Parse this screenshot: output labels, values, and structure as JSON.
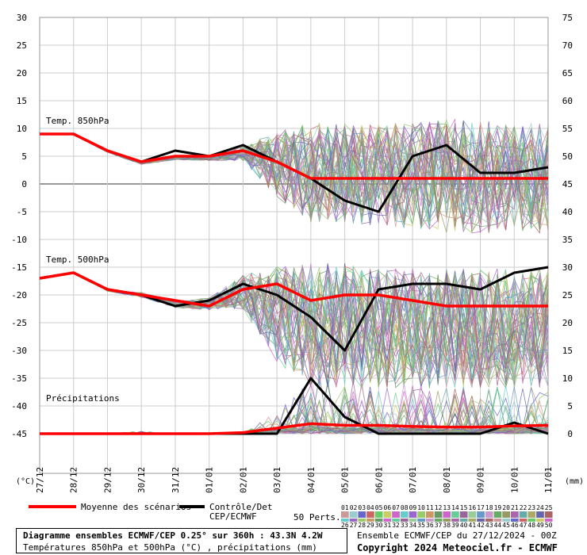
{
  "chart_data": {
    "type": "line",
    "left_axis": {
      "unit": "(°C)",
      "ticks": [
        30,
        25,
        20,
        15,
        10,
        5,
        0,
        -5,
        -10,
        -15,
        -20,
        -25,
        -30,
        -35,
        -40,
        -45
      ]
    },
    "right_axis": {
      "unit": "(mm)",
      "ticks": [
        75,
        70,
        65,
        60,
        55,
        50,
        45,
        40,
        35,
        30,
        25,
        20,
        15,
        10,
        5,
        0
      ]
    },
    "x_tick_labels": [
      "27/12",
      "28/12",
      "29/12",
      "30/12",
      "31/12",
      "01/01",
      "02/01",
      "03/01",
      "04/01",
      "05/01",
      "06/01",
      "07/01",
      "08/01",
      "09/01",
      "10/01",
      "11/01"
    ],
    "panels": {
      "t850": {
        "label": "Temp. 850hPa",
        "mean": [
          9,
          9,
          6,
          4,
          5,
          5,
          6,
          4,
          1,
          1,
          1,
          1,
          1,
          1,
          1,
          1
        ],
        "control": [
          9,
          9,
          6,
          4,
          6,
          5,
          7,
          4,
          1,
          -3,
          -5,
          5,
          7,
          2,
          2,
          3
        ],
        "ensemble_spread": [
          [
            9,
            9,
            6,
            4,
            5,
            5,
            7,
            10,
            12,
            12,
            12,
            12,
            13,
            13,
            12,
            12
          ],
          [
            8,
            8,
            5,
            3,
            4,
            4,
            4,
            -3,
            -8,
            -8,
            -9,
            -9,
            -10,
            -10,
            -10,
            -10
          ]
        ]
      },
      "t500": {
        "label": "Temp. 500hPa",
        "mean": [
          -17,
          -16,
          -19,
          -20,
          -21,
          -22,
          -19,
          -18,
          -21,
          -20,
          -20,
          -21,
          -22,
          -22,
          -22,
          -22
        ],
        "control": [
          -17,
          -16,
          -19,
          -20,
          -22,
          -21,
          -18,
          -20,
          -24,
          -30,
          -19,
          -18,
          -18,
          -19,
          -16,
          -15
        ],
        "ensemble_spread": [
          [
            -17,
            -16,
            -19,
            -19,
            -21,
            -20,
            -16,
            -14,
            -13,
            -13,
            -14,
            -14,
            -14,
            -14,
            -14,
            -14
          ],
          [
            -18,
            -17,
            -20,
            -21,
            -23,
            -23,
            -23,
            -33,
            -38,
            -38,
            -38,
            -38,
            -38,
            -38,
            -38,
            -38
          ]
        ]
      },
      "precip": {
        "label": "Précipitations",
        "mean": [
          0,
          0,
          0,
          0,
          0,
          0,
          0.2,
          1,
          1.8,
          1.5,
          1.5,
          1.3,
          1.2,
          1.2,
          1.4,
          1.5
        ],
        "control": [
          0,
          0,
          0,
          0,
          0,
          0,
          0,
          0,
          10,
          3,
          0,
          0,
          0,
          0,
          2,
          0
        ],
        "ensemble_spread": [
          [
            0,
            0,
            0,
            0.5,
            0,
            0,
            0,
            4,
            11,
            10,
            9,
            9,
            9,
            8,
            9,
            8
          ],
          [
            0,
            0,
            0,
            0,
            0,
            0,
            0,
            0,
            0,
            0,
            0,
            0,
            0,
            0,
            0,
            0
          ]
        ]
      }
    },
    "series": [
      {
        "name": "Moyenne des scénarios",
        "color": "#ff0000"
      },
      {
        "name": "Contrôle/Det CEP/ECMWF",
        "color": "#000000"
      },
      {
        "name": "50 Perts."
      }
    ],
    "pert_labels_row1": [
      "01",
      "02",
      "03",
      "04",
      "05",
      "06",
      "07",
      "08",
      "09",
      "10",
      "11",
      "12",
      "13",
      "14",
      "15",
      "16",
      "17",
      "18",
      "19",
      "20",
      "21",
      "22",
      "23",
      "24",
      "25"
    ],
    "pert_labels_row2": [
      "26",
      "27",
      "28",
      "29",
      "30",
      "31",
      "32",
      "33",
      "34",
      "35",
      "36",
      "37",
      "38",
      "39",
      "40",
      "41",
      "42",
      "43",
      "44",
      "45",
      "46",
      "47",
      "48",
      "49",
      "50"
    ],
    "pert_colors": [
      "#cc9999",
      "#99cccc",
      "#6666cc",
      "#cc6666",
      "#66cc66",
      "#cccc66",
      "#cc66cc",
      "#66cccc",
      "#9966cc",
      "#99cc66",
      "#cc9966",
      "#669966",
      "#cc66cc",
      "#66cc99",
      "#996699",
      "#99cc99",
      "#6699cc",
      "#cc99cc",
      "#66aa66",
      "#999966",
      "#aa66aa",
      "#66aaaa",
      "#aaaa66",
      "#6666aa",
      "#aa6666"
    ]
  },
  "legend": {
    "mean_label": "Moyenne des scénarios",
    "control_label_1": "Contrôle/Det",
    "control_label_2": "CEP/ECMWF",
    "perts_label": "50 Perts."
  },
  "footer": {
    "title": "Diagramme ensembles ECMWF/CEP 0.25° sur 360h : 43.3N 4.2W",
    "subtitle": "Températures 850hPa et 500hPa (°C) , précipitations (mm)",
    "run_info": "Ensemble ECMWF/CEP du 27/12/2024 - 00Z",
    "copyright": "Copyright 2024 Meteociel.fr - ECMWF"
  }
}
